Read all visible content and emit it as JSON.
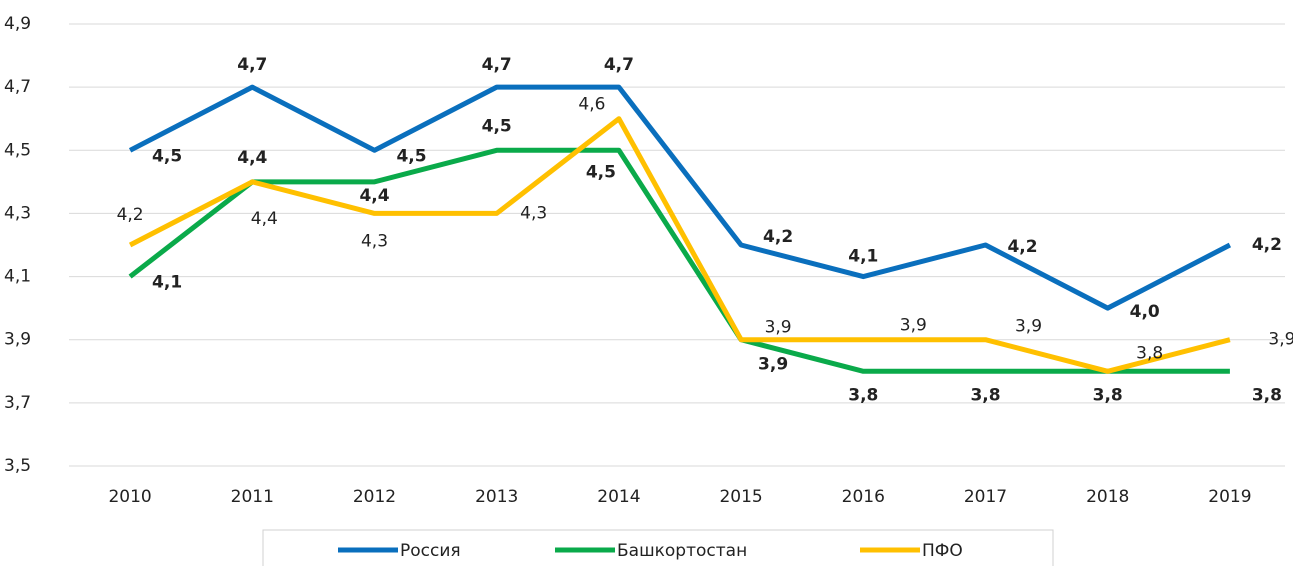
{
  "chart_data": {
    "type": "line",
    "categories": [
      "2010",
      "2011",
      "2012",
      "2013",
      "2014",
      "2015",
      "2016",
      "2017",
      "2018",
      "2019"
    ],
    "series": [
      {
        "name": "Россия",
        "color": "#0a6fbd",
        "values": [
          4.5,
          4.7,
          4.5,
          4.7,
          4.7,
          4.2,
          4.1,
          4.2,
          4.0,
          4.2
        ],
        "value_labels": [
          "4,5",
          "4,7",
          "4,5",
          "4,7",
          "4,7",
          "4,2",
          "4,1",
          "4,2",
          "4,0",
          "4,2"
        ]
      },
      {
        "name": "Башкортостан",
        "color": "#0aaa4a",
        "values": [
          4.1,
          4.4,
          4.4,
          4.5,
          4.5,
          3.9,
          3.8,
          3.8,
          3.8,
          3.8
        ],
        "value_labels": [
          "4,1",
          "4,4",
          "4,4",
          "4,5",
          "4,5",
          "3,9",
          "3,8",
          "3,8",
          "3,8",
          "3,8"
        ]
      },
      {
        "name": "ПФО",
        "color": "#ffc000",
        "values": [
          4.2,
          4.4,
          4.3,
          4.3,
          4.6,
          3.9,
          3.9,
          3.9,
          3.8,
          3.9
        ],
        "value_labels": [
          "4,2",
          "4,4",
          "4,3",
          "4,3",
          "4,6",
          "3,9",
          "3,9",
          "3,9",
          "3,8",
          "3,9"
        ]
      }
    ],
    "ylim": [
      3.5,
      4.9
    ],
    "yticks": [
      {
        "value": 3.5,
        "label": "3,5"
      },
      {
        "value": 3.7,
        "label": "3,7"
      },
      {
        "value": 3.9,
        "label": "3,9"
      },
      {
        "value": 4.1,
        "label": "4,1"
      },
      {
        "value": 4.3,
        "label": "4,3"
      },
      {
        "value": 4.5,
        "label": "4,5"
      },
      {
        "value": 4.7,
        "label": "4,7"
      },
      {
        "value": 4.9,
        "label": "4,9"
      }
    ],
    "grid": true,
    "legend": "bottom"
  }
}
